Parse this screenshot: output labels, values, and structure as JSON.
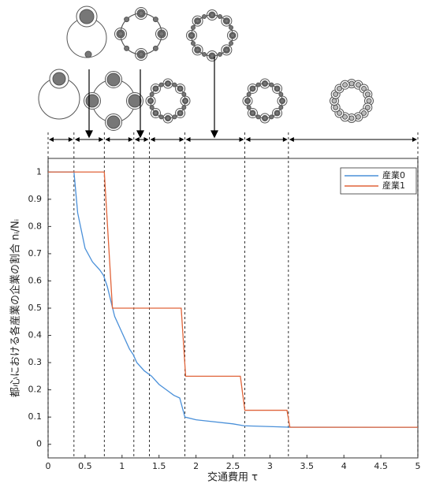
{
  "chart_data": {
    "type": "line",
    "xlabel": "交通費用 τ",
    "ylabel": "都心における各産業の企業の割合 nᵢ/Nᵢ",
    "xlim": [
      0,
      5
    ],
    "ylim": [
      -0.05,
      1.05
    ],
    "xticks": [
      0,
      0.5,
      1,
      1.5,
      2,
      2.5,
      3,
      3.5,
      4,
      4.5,
      5
    ],
    "yticks": [
      0,
      0.1,
      0.2,
      0.3,
      0.4,
      0.5,
      0.6,
      0.7,
      0.8,
      0.9,
      1
    ],
    "boundaries": [
      0,
      0.35,
      0.76,
      1.16,
      1.37,
      1.85,
      2.66,
      3.25,
      5
    ],
    "legend": "upper right",
    "series": [
      {
        "name": "産業0",
        "color": "#4a90d9",
        "x": [
          0,
          0.35,
          0.4,
          0.5,
          0.6,
          0.7,
          0.75,
          0.8,
          0.9,
          1.0,
          1.1,
          1.15,
          1.2,
          1.3,
          1.4,
          1.5,
          1.6,
          1.7,
          1.78,
          1.85,
          2.0,
          2.5,
          2.65,
          3.0,
          3.25,
          5
        ],
        "values": [
          1,
          1,
          0.85,
          0.72,
          0.67,
          0.64,
          0.62,
          0.58,
          0.47,
          0.41,
          0.35,
          0.33,
          0.3,
          0.27,
          0.25,
          0.22,
          0.2,
          0.18,
          0.17,
          0.1,
          0.09,
          0.075,
          0.068,
          0.065,
          0.063,
          0.0625
        ]
      },
      {
        "name": "産業1",
        "color": "#e0643a",
        "x": [
          0,
          0.76,
          0.87,
          1.8,
          1.86,
          2.6,
          2.66,
          3.23,
          3.27,
          5
        ],
        "values": [
          1,
          1,
          0.5,
          0.5,
          0.25,
          0.25,
          0.125,
          0.125,
          0.0625,
          0.0625
        ]
      }
    ]
  }
}
